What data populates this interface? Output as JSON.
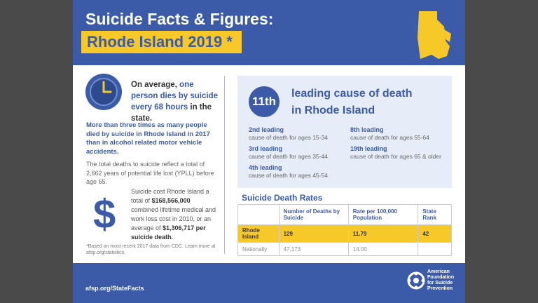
{
  "header": {
    "title": "Suicide Facts & Figures:",
    "subtitle": "Rhode Island 2019 *"
  },
  "left": {
    "stat1": [
      "On average, ",
      "one person dies by suicide every 68 hours",
      " in the state."
    ],
    "stat2": "More than three times as many people died by suicide in Rhode Island in 2017 than in alcohol related motor vehicle accidents.",
    "stat3": "The total deaths to suicide reflect a total of 2,662 years of potential life lost (YPLL) before age 65.",
    "cost": [
      "Suicide cost Rhode Island a total of ",
      "$168,566,000",
      " combined lifetime medical and work loss cost in 2010, or an average of ",
      "$1,306,717",
      " per suicide death."
    ],
    "dollar": "$",
    "footnote": "*Based on most recent 2017 data from CDC. Learn more at afsp.org/statistics."
  },
  "right": {
    "rank": "11th",
    "heading": [
      "leading cause of death",
      "in Rhode Island"
    ],
    "causes": [
      {
        "rank": "2nd leading",
        "desc": "cause of death for ages 15-34"
      },
      {
        "rank": "3rd leading",
        "desc": "cause of death for ages 35-44"
      },
      {
        "rank": "4th leading",
        "desc": "cause of death for ages 45-54"
      },
      {
        "rank": "8th leading",
        "desc": "cause of death for ages 55-64"
      },
      {
        "rank": "19th leading",
        "desc": "cause of death for ages 65 & older"
      }
    ]
  },
  "table": {
    "title": "Suicide Death Rates",
    "headers": [
      "Number of Deaths by Suicide",
      "Rate per 100,000 Population",
      "State Rank"
    ],
    "rows": [
      [
        "Rhode Island",
        "129",
        "11.79",
        "42"
      ],
      [
        "Nationally",
        "47,173",
        "14.00"
      ]
    ]
  },
  "footer": {
    "url": "afsp.org/StateFacts",
    "org": [
      "American",
      "Foundation",
      "for Suicide",
      "Prevention"
    ]
  }
}
